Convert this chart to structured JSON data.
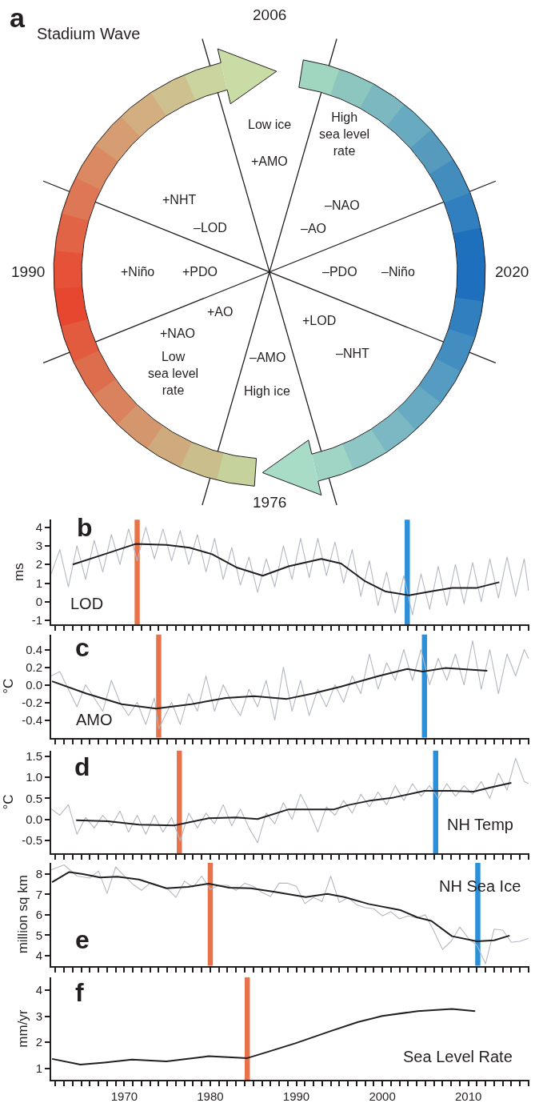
{
  "chart_data": [
    {
      "type": "other",
      "title": "Stadium Wave",
      "annotations": [
        "a",
        "2006",
        "1990",
        "2020",
        "1976",
        "Low ice",
        "+AMO",
        "High\nsea level\nrate",
        "–NAO",
        "–AO",
        "+NHT",
        "–LOD",
        "+Niño",
        "+PDO",
        "–PDO",
        "–Niño",
        "+AO",
        "+NAO",
        "Low\nsea level\nrate",
        "+LOD",
        "–NHT",
        "–AMO",
        "High ice"
      ]
    },
    {
      "type": "line",
      "ylabel": "ms",
      "annotations": [
        "b",
        "LOD"
      ],
      "xlim": [
        1961.5,
        2017.1
      ],
      "ylim": [
        -1.2,
        4.4
      ],
      "yticks": [
        -1,
        0,
        1,
        2,
        3,
        4
      ],
      "tick_labels": "y",
      "xticks": [
        {
          "value": 1962,
          "label": null
        },
        {
          "value": 1963,
          "label": null
        },
        {
          "value": 1964,
          "label": null
        },
        {
          "value": 1965,
          "label": null
        },
        {
          "value": 1966,
          "label": null
        },
        {
          "value": 1967,
          "label": null
        },
        {
          "value": 1968,
          "label": null
        },
        {
          "value": 1969,
          "label": null
        },
        1970,
        {
          "value": 1971,
          "label": null
        },
        {
          "value": 1972,
          "label": null
        },
        {
          "value": 1973,
          "label": null
        },
        {
          "value": 1974,
          "label": null
        },
        {
          "value": 1975,
          "label": null
        },
        {
          "value": 1976,
          "label": null
        },
        {
          "value": 1977,
          "label": null
        },
        {
          "value": 1978,
          "label": null
        },
        {
          "value": 1979,
          "label": null
        },
        1980,
        {
          "value": 1981,
          "label": null
        },
        {
          "value": 1982,
          "label": null
        },
        {
          "value": 1983,
          "label": null
        },
        {
          "value": 1984,
          "label": null
        },
        {
          "value": 1985,
          "label": null
        },
        {
          "value": 1986,
          "label": null
        },
        {
          "value": 1987,
          "label": null
        },
        {
          "value": 1988,
          "label": null
        },
        {
          "value": 1989,
          "label": null
        },
        1990,
        {
          "value": 1991,
          "label": null
        },
        {
          "value": 1992,
          "label": null
        },
        {
          "value": 1993,
          "label": null
        },
        {
          "value": 1994,
          "label": null
        },
        {
          "value": 1995,
          "label": null
        },
        {
          "value": 1996,
          "label": null
        },
        {
          "value": 1997,
          "label": null
        },
        {
          "value": 1998,
          "label": null
        },
        {
          "value": 1999,
          "label": null
        },
        2000,
        {
          "value": 2001,
          "label": null
        },
        {
          "value": 2002,
          "label": null
        },
        {
          "value": 2003,
          "label": null
        },
        {
          "value": 2004,
          "label": null
        },
        {
          "value": 2005,
          "label": null
        },
        {
          "value": 2006,
          "label": null
        },
        {
          "value": 2007,
          "label": null
        },
        {
          "value": 2008,
          "label": null
        },
        {
          "value": 2009,
          "label": null
        },
        2010,
        {
          "value": 2011,
          "label": null
        },
        {
          "value": 2012,
          "label": null
        },
        {
          "value": 2013,
          "label": null
        },
        {
          "value": 2014,
          "label": null
        },
        {
          "value": 2015,
          "label": null
        },
        {
          "value": 2016,
          "label": null
        },
        {
          "value": 2017,
          "label": null
        }
      ],
      "series": [
        {
          "color": "#b3b8c2",
          "x": [
            1961.5,
            1962.5,
            1963.5,
            1964.5,
            1965.5,
            1966.5,
            1967.5,
            1968.5,
            1969.5,
            1970.5,
            1971.5,
            1972.5,
            1973.5,
            1974.5,
            1975.5,
            1976.5,
            1977.5,
            1978.5,
            1979.5,
            1980.5,
            1981.5,
            1982.5,
            1983.5,
            1984.5,
            1985.5,
            1986.5,
            1987.5,
            1988.5,
            1989.5,
            1990.5,
            1991.5,
            1992.5,
            1993.5,
            1994.5,
            1995.5,
            1996.5,
            1997.5,
            1998.5,
            1999.5,
            2000.5,
            2001.5,
            2002.5,
            2003.5,
            2004.5,
            2005.5,
            2006.5,
            2007.5,
            2008.5,
            2009.5,
            2010.5,
            2011.5,
            2012.5,
            2013.5,
            2014.5,
            2015.5,
            2016.5,
            2017.0
          ],
          "values": [
            1.5,
            2.8,
            0.8,
            3.0,
            1.2,
            3.3,
            1.6,
            3.6,
            2.0,
            3.9,
            2.2,
            4.0,
            2.3,
            3.9,
            2.2,
            3.8,
            2.0,
            3.6,
            1.6,
            3.4,
            1.2,
            2.9,
            0.9,
            2.4,
            0.5,
            2.3,
            0.8,
            3.0,
            1.2,
            3.4,
            1.3,
            3.4,
            1.4,
            3.2,
            1.0,
            2.8,
            0.3,
            2.2,
            -0.2,
            1.6,
            -0.6,
            1.4,
            -0.7,
            1.5,
            -0.4,
            1.9,
            -0.2,
            2.0,
            -0.1,
            2.1,
            0.0,
            2.3,
            0.2,
            2.4,
            0.3,
            2.3,
            0.6
          ]
        },
        {
          "color": "#231f20",
          "x": [
            1964.0,
            1967.7,
            1971.3,
            1974.9,
            1977.6,
            1980.2,
            1983.0,
            1986.1,
            1989.1,
            1992.9,
            1995.2,
            1998.0,
            2000.4,
            2003.1,
            2006.1,
            2008.1,
            2011.0,
            2013.6
          ],
          "values": [
            2.0,
            2.55,
            3.1,
            3.05,
            2.9,
            2.55,
            1.85,
            1.4,
            1.9,
            2.3,
            2.05,
            1.1,
            0.55,
            0.35,
            0.6,
            0.75,
            0.75,
            1.05
          ]
        }
      ],
      "bands": [
        {
          "axis": "x",
          "from": 1971.2,
          "to": 1971.8,
          "color": "#e8734a"
        },
        {
          "axis": "x",
          "from": 2002.6,
          "to": 2003.2,
          "color": "#2b90d9"
        }
      ]
    },
    {
      "type": "line",
      "ylabel": "°C",
      "annotations": [
        "c",
        "AMO"
      ],
      "xlim": [
        1961.5,
        2017.1
      ],
      "ylim": [
        -0.6,
        0.57
      ],
      "yticks": [
        {
          "value": -0.4,
          "label": "-0.4"
        },
        {
          "value": -0.2,
          "label": "-0.2"
        },
        {
          "value": 0,
          "label": "0.0"
        },
        0.2,
        0.4
      ],
      "tick_labels": "y",
      "xticks": [
        {
          "value": 1962,
          "label": null
        },
        {
          "value": 1963,
          "label": null
        },
        {
          "value": 1964,
          "label": null
        },
        {
          "value": 1965,
          "label": null
        },
        {
          "value": 1966,
          "label": null
        },
        {
          "value": 1967,
          "label": null
        },
        {
          "value": 1968,
          "label": null
        },
        {
          "value": 1969,
          "label": null
        },
        1970,
        {
          "value": 1971,
          "label": null
        },
        {
          "value": 1972,
          "label": null
        },
        {
          "value": 1973,
          "label": null
        },
        {
          "value": 1974,
          "label": null
        },
        {
          "value": 1975,
          "label": null
        },
        {
          "value": 1976,
          "label": null
        },
        {
          "value": 1977,
          "label": null
        },
        {
          "value": 1978,
          "label": null
        },
        {
          "value": 1979,
          "label": null
        },
        1980,
        {
          "value": 1981,
          "label": null
        },
        {
          "value": 1982,
          "label": null
        },
        {
          "value": 1983,
          "label": null
        },
        {
          "value": 1984,
          "label": null
        },
        {
          "value": 1985,
          "label": null
        },
        {
          "value": 1986,
          "label": null
        },
        {
          "value": 1987,
          "label": null
        },
        {
          "value": 1988,
          "label": null
        },
        {
          "value": 1989,
          "label": null
        },
        1990,
        {
          "value": 1991,
          "label": null
        },
        {
          "value": 1992,
          "label": null
        },
        {
          "value": 1993,
          "label": null
        },
        {
          "value": 1994,
          "label": null
        },
        {
          "value": 1995,
          "label": null
        },
        {
          "value": 1996,
          "label": null
        },
        {
          "value": 1997,
          "label": null
        },
        {
          "value": 1998,
          "label": null
        },
        {
          "value": 1999,
          "label": null
        },
        2000,
        {
          "value": 2001,
          "label": null
        },
        {
          "value": 2002,
          "label": null
        },
        {
          "value": 2003,
          "label": null
        },
        {
          "value": 2004,
          "label": null
        },
        {
          "value": 2005,
          "label": null
        },
        {
          "value": 2006,
          "label": null
        },
        {
          "value": 2007,
          "label": null
        },
        {
          "value": 2008,
          "label": null
        },
        {
          "value": 2009,
          "label": null
        },
        2010,
        {
          "value": 2011,
          "label": null
        },
        {
          "value": 2012,
          "label": null
        },
        {
          "value": 2013,
          "label": null
        },
        {
          "value": 2014,
          "label": null
        },
        {
          "value": 2015,
          "label": null
        },
        {
          "value": 2016,
          "label": null
        },
        {
          "value": 2017,
          "label": null
        }
      ],
      "series": [
        {
          "color": "#b3b8c2",
          "x": [
            1961.5,
            1962.5,
            1963.5,
            1964.5,
            1965.5,
            1966.5,
            1967.5,
            1968.5,
            1969.5,
            1970.5,
            1971.5,
            1972.5,
            1973.5,
            1974.0,
            1975.5,
            1976.5,
            1977.5,
            1978.5,
            1979.5,
            1980.5,
            1981.5,
            1982.5,
            1983.5,
            1984.5,
            1985.5,
            1986.5,
            1987.5,
            1988.5,
            1989.5,
            1990.5,
            1991.5,
            1992.5,
            1993.5,
            1994.5,
            1995.5,
            1996.5,
            1997.5,
            1998.5,
            1999.5,
            2000.5,
            2001.5,
            2002.5,
            2003.5,
            2004.5,
            2005.5,
            2006.5,
            2007.5,
            2008.5,
            2009.5,
            2010.5,
            2011.5,
            2012.5,
            2013.5,
            2014.5,
            2015.5,
            2016.5,
            2017.0
          ],
          "values": [
            0.1,
            0.15,
            -0.05,
            -0.25,
            0.0,
            -0.15,
            -0.3,
            0.05,
            -0.2,
            -0.35,
            -0.2,
            -0.45,
            -0.15,
            -0.5,
            -0.2,
            -0.45,
            -0.1,
            -0.3,
            0.1,
            -0.3,
            0.0,
            -0.2,
            -0.35,
            -0.05,
            -0.25,
            0.05,
            -0.4,
            0.2,
            -0.3,
            0.05,
            -0.35,
            -0.05,
            -0.25,
            0.0,
            -0.2,
            0.1,
            -0.1,
            0.35,
            -0.05,
            0.25,
            0.05,
            0.4,
            0.05,
            0.4,
            0.0,
            0.3,
            0.05,
            0.35,
            0.0,
            0.5,
            -0.05,
            0.4,
            -0.1,
            0.35,
            0.1,
            0.4,
            0.3
          ]
        },
        {
          "color": "#231f20",
          "x": [
            1961.6,
            1965.6,
            1969.7,
            1973.7,
            1977.8,
            1981.8,
            1985.1,
            1988.9,
            1991.9,
            1995.2,
            1999.6,
            2002.9,
            2004.7,
            2007.3,
            2012.2
          ],
          "values": [
            0.04,
            -0.1,
            -0.22,
            -0.27,
            -0.22,
            -0.15,
            -0.13,
            -0.16,
            -0.1,
            -0.02,
            0.1,
            0.18,
            0.15,
            0.19,
            0.16
          ]
        }
      ],
      "bands": [
        {
          "axis": "x",
          "from": 1973.7,
          "to": 1974.3,
          "color": "#e8734a"
        },
        {
          "axis": "x",
          "from": 2004.6,
          "to": 2005.2,
          "color": "#2b90d9"
        }
      ]
    },
    {
      "type": "line",
      "ylabel": "°C",
      "annotations": [
        "d",
        "NH Temp"
      ],
      "xlim": [
        1961.5,
        2017.1
      ],
      "ylim": [
        -0.8,
        1.63
      ],
      "yticks": [
        -0.5,
        {
          "value": 0,
          "label": "0.0"
        },
        0.5,
        {
          "value": 1,
          "label": "1.0"
        },
        1.5
      ],
      "tick_labels": "y",
      "xticks": [
        {
          "value": 1962,
          "label": null
        },
        {
          "value": 1963,
          "label": null
        },
        {
          "value": 1964,
          "label": null
        },
        {
          "value": 1965,
          "label": null
        },
        {
          "value": 1966,
          "label": null
        },
        {
          "value": 1967,
          "label": null
        },
        {
          "value": 1968,
          "label": null
        },
        {
          "value": 1969,
          "label": null
        },
        1970,
        {
          "value": 1971,
          "label": null
        },
        {
          "value": 1972,
          "label": null
        },
        {
          "value": 1973,
          "label": null
        },
        {
          "value": 1974,
          "label": null
        },
        {
          "value": 1975,
          "label": null
        },
        {
          "value": 1976,
          "label": null
        },
        {
          "value": 1977,
          "label": null
        },
        {
          "value": 1978,
          "label": null
        },
        {
          "value": 1979,
          "label": null
        },
        1980,
        {
          "value": 1981,
          "label": null
        },
        {
          "value": 1982,
          "label": null
        },
        {
          "value": 1983,
          "label": null
        },
        {
          "value": 1984,
          "label": null
        },
        {
          "value": 1985,
          "label": null
        },
        {
          "value": 1986,
          "label": null
        },
        {
          "value": 1987,
          "label": null
        },
        {
          "value": 1988,
          "label": null
        },
        {
          "value": 1989,
          "label": null
        },
        1990,
        {
          "value": 1991,
          "label": null
        },
        {
          "value": 1992,
          "label": null
        },
        {
          "value": 1993,
          "label": null
        },
        {
          "value": 1994,
          "label": null
        },
        {
          "value": 1995,
          "label": null
        },
        {
          "value": 1996,
          "label": null
        },
        {
          "value": 1997,
          "label": null
        },
        {
          "value": 1998,
          "label": null
        },
        {
          "value": 1999,
          "label": null
        },
        2000,
        {
          "value": 2001,
          "label": null
        },
        {
          "value": 2002,
          "label": null
        },
        {
          "value": 2003,
          "label": null
        },
        {
          "value": 2004,
          "label": null
        },
        {
          "value": 2005,
          "label": null
        },
        {
          "value": 2006,
          "label": null
        },
        {
          "value": 2007,
          "label": null
        },
        {
          "value": 2008,
          "label": null
        },
        {
          "value": 2009,
          "label": null
        },
        2010,
        {
          "value": 2011,
          "label": null
        },
        {
          "value": 2012,
          "label": null
        },
        {
          "value": 2013,
          "label": null
        },
        {
          "value": 2014,
          "label": null
        },
        {
          "value": 2015,
          "label": null
        },
        {
          "value": 2016,
          "label": null
        },
        {
          "value": 2017,
          "label": null
        }
      ],
      "series": [
        {
          "color": "#b3b8c2",
          "x": [
            1961.5,
            1962.5,
            1963.5,
            1964.5,
            1965.5,
            1966.5,
            1967.5,
            1968.5,
            1969.5,
            1970.5,
            1971.5,
            1972.5,
            1973.5,
            1974.5,
            1975.5,
            1976.5,
            1977.5,
            1978.5,
            1979.5,
            1980.5,
            1981.5,
            1982.5,
            1983.5,
            1984.5,
            1985.5,
            1986.5,
            1987.5,
            1988.5,
            1989.5,
            1990.5,
            1991.5,
            1992.5,
            1993.5,
            1994.5,
            1995.5,
            1996.5,
            1997.5,
            1998.5,
            1999.5,
            2000.5,
            2001.5,
            2002.5,
            2003.5,
            2004.5,
            2005.5,
            2006.5,
            2007.5,
            2008.5,
            2009.5,
            2010.5,
            2011.5,
            2012.5,
            2013.5,
            2014.5,
            2015.5,
            2016.5,
            2017.0
          ],
          "values": [
            0.25,
            0.1,
            0.35,
            -0.35,
            0.05,
            -0.2,
            0.1,
            -0.15,
            0.2,
            -0.3,
            0.1,
            -0.35,
            0.1,
            -0.3,
            0.05,
            -0.5,
            0.15,
            -0.2,
            0.15,
            -0.1,
            0.35,
            -0.15,
            0.25,
            -0.2,
            -0.55,
            0.15,
            -0.1,
            0.4,
            0.0,
            0.6,
            0.2,
            -0.3,
            0.3,
            0.1,
            0.45,
            0.15,
            0.6,
            0.3,
            0.65,
            0.35,
            0.8,
            0.45,
            0.85,
            0.55,
            0.8,
            0.5,
            0.85,
            0.55,
            0.8,
            0.6,
            0.9,
            0.5,
            1.1,
            0.7,
            1.45,
            0.9,
            0.85
          ]
        },
        {
          "color": "#231f20",
          "x": [
            1964.4,
            1968.1,
            1971.7,
            1975.8,
            1979.8,
            1983.0,
            1985.5,
            1989.1,
            1994.4,
            1996.0,
            1998.4,
            2001.3,
            2004.9,
            2008.1,
            2010.6,
            2012.6,
            2015.0
          ],
          "values": [
            -0.02,
            -0.04,
            -0.12,
            -0.14,
            0.03,
            0.05,
            0.01,
            0.24,
            0.24,
            0.34,
            0.44,
            0.52,
            0.68,
            0.68,
            0.66,
            0.76,
            0.87
          ]
        }
      ],
      "bands": [
        {
          "axis": "x",
          "from": 1976.1,
          "to": 1976.7,
          "color": "#e8734a"
        },
        {
          "axis": "x",
          "from": 2005.9,
          "to": 2006.5,
          "color": "#2b90d9"
        }
      ]
    },
    {
      "type": "line",
      "ylabel": "million sq km",
      "annotations": [
        "e",
        "NH Sea Ice"
      ],
      "xlim": [
        1961.5,
        2017.1
      ],
      "ylim": [
        3.5,
        8.55
      ],
      "yticks": [
        4,
        5,
        6,
        7,
        8
      ],
      "tick_labels": "y",
      "xticks": [
        {
          "value": 1962,
          "label": null
        },
        {
          "value": 1963,
          "label": null
        },
        {
          "value": 1964,
          "label": null
        },
        {
          "value": 1965,
          "label": null
        },
        {
          "value": 1966,
          "label": null
        },
        {
          "value": 1967,
          "label": null
        },
        {
          "value": 1968,
          "label": null
        },
        {
          "value": 1969,
          "label": null
        },
        1970,
        {
          "value": 1971,
          "label": null
        },
        {
          "value": 1972,
          "label": null
        },
        {
          "value": 1973,
          "label": null
        },
        {
          "value": 1974,
          "label": null
        },
        {
          "value": 1975,
          "label": null
        },
        {
          "value": 1976,
          "label": null
        },
        {
          "value": 1977,
          "label": null
        },
        {
          "value": 1978,
          "label": null
        },
        {
          "value": 1979,
          "label": null
        },
        1980,
        {
          "value": 1981,
          "label": null
        },
        {
          "value": 1982,
          "label": null
        },
        {
          "value": 1983,
          "label": null
        },
        {
          "value": 1984,
          "label": null
        },
        {
          "value": 1985,
          "label": null
        },
        {
          "value": 1986,
          "label": null
        },
        {
          "value": 1987,
          "label": null
        },
        {
          "value": 1988,
          "label": null
        },
        {
          "value": 1989,
          "label": null
        },
        1990,
        {
          "value": 1991,
          "label": null
        },
        {
          "value": 1992,
          "label": null
        },
        {
          "value": 1993,
          "label": null
        },
        {
          "value": 1994,
          "label": null
        },
        {
          "value": 1995,
          "label": null
        },
        {
          "value": 1996,
          "label": null
        },
        {
          "value": 1997,
          "label": null
        },
        {
          "value": 1998,
          "label": null
        },
        {
          "value": 1999,
          "label": null
        },
        2000,
        {
          "value": 2001,
          "label": null
        },
        {
          "value": 2002,
          "label": null
        },
        {
          "value": 2003,
          "label": null
        },
        {
          "value": 2004,
          "label": null
        },
        {
          "value": 2005,
          "label": null
        },
        {
          "value": 2006,
          "label": null
        },
        {
          "value": 2007,
          "label": null
        },
        {
          "value": 2008,
          "label": null
        },
        {
          "value": 2009,
          "label": null
        },
        2010,
        {
          "value": 2011,
          "label": null
        },
        {
          "value": 2012,
          "label": null
        },
        {
          "value": 2013,
          "label": null
        },
        {
          "value": 2014,
          "label": null
        },
        {
          "value": 2015,
          "label": null
        },
        {
          "value": 2016,
          "label": null
        },
        {
          "value": 2017,
          "label": null
        }
      ],
      "series": [
        {
          "color": "#b3b8c2",
          "x": [
            1961.5,
            1963,
            1964.5,
            1966,
            1967,
            1968,
            1969,
            1970,
            1971,
            1972,
            1973,
            1974,
            1975,
            1976,
            1977,
            1978,
            1979,
            1980,
            1981,
            1982,
            1983,
            1984,
            1985,
            1986,
            1987,
            1988,
            1989,
            1990,
            1991,
            1992,
            1993,
            1994,
            1995,
            1996,
            1997,
            1998,
            1999,
            2000,
            2001,
            2002,
            2003,
            2004,
            2005,
            2006,
            2007,
            2008,
            2009,
            2010,
            2011,
            2012,
            2013,
            2014,
            2015,
            2016,
            2017
          ],
          "values": [
            8.2,
            8.45,
            7.9,
            7.8,
            8.15,
            7.05,
            8.35,
            7.9,
            7.5,
            7.2,
            7.55,
            7.4,
            7.3,
            6.85,
            7.65,
            7.35,
            7.9,
            7.25,
            7.45,
            7.45,
            7.2,
            7.55,
            7.4,
            7.1,
            6.9,
            7.55,
            7.55,
            7.4,
            6.55,
            6.85,
            6.65,
            7.9,
            6.6,
            6.85,
            6.5,
            6.35,
            6.3,
            5.95,
            6.15,
            5.8,
            5.95,
            5.85,
            6.0,
            5.2,
            4.3,
            4.7,
            5.4,
            4.85,
            4.5,
            3.6,
            5.3,
            5.25,
            4.65,
            4.7,
            4.85
          ]
        },
        {
          "color": "#231f20",
          "x": [
            1961.6,
            1963.6,
            1965.2,
            1967.2,
            1969.2,
            1971.7,
            1974.9,
            1977.4,
            1979.8,
            1982.2,
            1984.7,
            1987.5,
            1991.1,
            1993.6,
            1995.6,
            1998.4,
            2002.1,
            2004.1,
            2005.7,
            2008.1,
            2011.0,
            2013.0,
            2014.8
          ],
          "values": [
            7.6,
            8.1,
            8.0,
            7.83,
            7.87,
            7.73,
            7.3,
            7.37,
            7.53,
            7.33,
            7.3,
            7.12,
            6.87,
            7.03,
            6.87,
            6.53,
            6.23,
            5.87,
            5.7,
            4.95,
            4.7,
            4.75,
            4.98
          ]
        }
      ],
      "bands": [
        {
          "axis": "x",
          "from": 1979.7,
          "to": 1980.3,
          "color": "#e8734a"
        },
        {
          "axis": "x",
          "from": 2010.8,
          "to": 2011.4,
          "color": "#2b90d9"
        }
      ]
    },
    {
      "type": "line",
      "ylabel": "mm/yr",
      "annotations": [
        "f",
        "Sea Level Rate"
      ],
      "xlim": [
        1961.5,
        2017.1
      ],
      "ylim": [
        0.55,
        4.5
      ],
      "yticks": [
        1,
        2,
        3,
        4
      ],
      "xticks": [
        {
          "value": 1962,
          "label": null
        },
        {
          "value": 1963,
          "label": null
        },
        {
          "value": 1964,
          "label": null
        },
        {
          "value": 1965,
          "label": null
        },
        {
          "value": 1966,
          "label": null
        },
        {
          "value": 1967,
          "label": null
        },
        {
          "value": 1968,
          "label": null
        },
        {
          "value": 1969,
          "label": null
        },
        1970,
        {
          "value": 1971,
          "label": null
        },
        {
          "value": 1972,
          "label": null
        },
        {
          "value": 1973,
          "label": null
        },
        {
          "value": 1974,
          "label": null
        },
        {
          "value": 1975,
          "label": null
        },
        {
          "value": 1976,
          "label": null
        },
        {
          "value": 1977,
          "label": null
        },
        {
          "value": 1978,
          "label": null
        },
        {
          "value": 1979,
          "label": null
        },
        1980,
        {
          "value": 1981,
          "label": null
        },
        {
          "value": 1982,
          "label": null
        },
        {
          "value": 1983,
          "label": null
        },
        {
          "value": 1984,
          "label": null
        },
        {
          "value": 1985,
          "label": null
        },
        {
          "value": 1986,
          "label": null
        },
        {
          "value": 1987,
          "label": null
        },
        {
          "value": 1988,
          "label": null
        },
        {
          "value": 1989,
          "label": null
        },
        1990,
        {
          "value": 1991,
          "label": null
        },
        {
          "value": 1992,
          "label": null
        },
        {
          "value": 1993,
          "label": null
        },
        {
          "value": 1994,
          "label": null
        },
        {
          "value": 1995,
          "label": null
        },
        {
          "value": 1996,
          "label": null
        },
        {
          "value": 1997,
          "label": null
        },
        {
          "value": 1998,
          "label": null
        },
        {
          "value": 1999,
          "label": null
        },
        2000,
        {
          "value": 2001,
          "label": null
        },
        {
          "value": 2002,
          "label": null
        },
        {
          "value": 2003,
          "label": null
        },
        {
          "value": 2004,
          "label": null
        },
        {
          "value": 2005,
          "label": null
        },
        {
          "value": 2006,
          "label": null
        },
        {
          "value": 2007,
          "label": null
        },
        {
          "value": 2008,
          "label": null
        },
        {
          "value": 2009,
          "label": null
        },
        2010,
        {
          "value": 2011,
          "label": null
        },
        {
          "value": 2012,
          "label": null
        },
        {
          "value": 2013,
          "label": null
        },
        {
          "value": 2014,
          "label": null
        },
        {
          "value": 2015,
          "label": null
        },
        {
          "value": 2016,
          "label": null
        },
        {
          "value": 2017,
          "label": null
        }
      ],
      "series": [
        {
          "color": "#231f20",
          "x": [
            1961.6,
            1964.9,
            1967.7,
            1970.9,
            1974.9,
            1979.8,
            1984.3,
            1986.3,
            1989.9,
            1994.0,
            1997.2,
            2000.0,
            2004.1,
            2008.1,
            2010.8
          ],
          "values": [
            1.36,
            1.14,
            1.22,
            1.33,
            1.26,
            1.46,
            1.39,
            1.59,
            1.96,
            2.43,
            2.78,
            3.01,
            3.2,
            3.28,
            3.2
          ]
        }
      ],
      "bands": [
        {
          "axis": "x",
          "from": 1984.0,
          "to": 1984.6,
          "color": "#e8734a"
        }
      ]
    }
  ]
}
